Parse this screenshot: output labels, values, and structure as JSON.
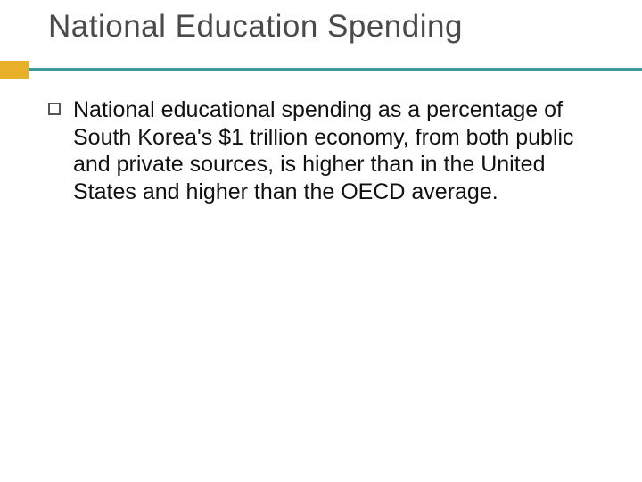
{
  "slide": {
    "title": "National Education Spending",
    "title_color": "#4a4a4a",
    "title_fontsize": 35,
    "accent_color": "#e8b028",
    "divider_color": "#3a9b9b",
    "background_color": "#ffffff",
    "bullets": [
      {
        "text": "National educational spending as a percentage of South Korea's $1 trillion economy, from both public and private sources, is higher than in the United States and higher than the OECD average."
      }
    ],
    "body_fontsize": 25,
    "body_color": "#111111",
    "bullet_border_color": "#555555"
  }
}
